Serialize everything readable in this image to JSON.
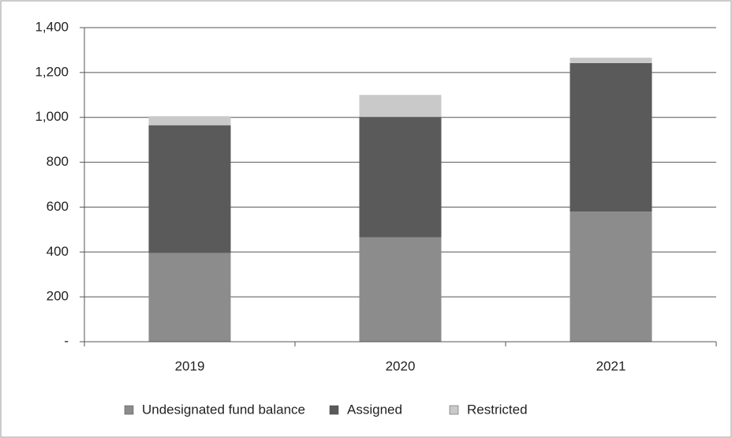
{
  "chart_data": {
    "type": "stacked_bar",
    "categories": [
      "2019",
      "2020",
      "2021"
    ],
    "series": [
      {
        "name": "Undesignated fund balance",
        "color": "#8c8c8c",
        "values": [
          395,
          465,
          580
        ]
      },
      {
        "name": "Assigned",
        "color": "#5a5a5a",
        "values": [
          570,
          537,
          662
        ]
      },
      {
        "name": "Restricted",
        "color": "#c9c9c9",
        "values": [
          40,
          98,
          24
        ]
      }
    ],
    "ylim": [
      0,
      1400
    ],
    "yticks": [
      {
        "value": 0,
        "label": "-"
      },
      {
        "value": 200,
        "label": "200"
      },
      {
        "value": 400,
        "label": "400"
      },
      {
        "value": 600,
        "label": "600"
      },
      {
        "value": 800,
        "label": "800"
      },
      {
        "value": 1000,
        "label": "1,000"
      },
      {
        "value": 1200,
        "label": "1,200"
      },
      {
        "value": 1400,
        "label": "1,400"
      }
    ],
    "grid": true,
    "legend": "bottom"
  }
}
